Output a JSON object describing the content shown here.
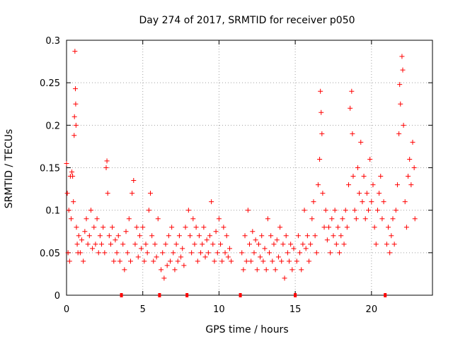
{
  "chart_data": {
    "type": "scatter",
    "title": "Day 274 of 2017, SRMTID for receiver p050",
    "xlabel": "GPS time / hours",
    "ylabel": "SRMTID / TECUs",
    "xlim": [
      0,
      24
    ],
    "ylim": [
      0,
      0.3
    ],
    "xticks": [
      0,
      5,
      10,
      15,
      20
    ],
    "xtick_labels": [
      "0",
      "5",
      "10",
      "15",
      "20"
    ],
    "yticks": [
      0,
      0.05,
      0.1,
      0.15,
      0.2,
      0.25,
      0.3
    ],
    "ytick_labels": [
      "0",
      "0.05",
      "0.1",
      "0.15",
      "0.2",
      "0.25",
      "0.3"
    ],
    "grid": true,
    "marker": "+",
    "series_color": "#ff0000",
    "gap_markers_x": [
      3.6,
      6.1,
      7.9,
      11.4,
      15.0,
      20.9
    ],
    "series": [
      {
        "name": "SRMTID",
        "points": [
          [
            0.0,
            0.155
          ],
          [
            0.05,
            0.12
          ],
          [
            0.1,
            0.05
          ],
          [
            0.15,
            0.1
          ],
          [
            0.2,
            0.04
          ],
          [
            0.25,
            0.14
          ],
          [
            0.3,
            0.09
          ],
          [
            0.35,
            0.145
          ],
          [
            0.4,
            0.14
          ],
          [
            0.45,
            0.11
          ],
          [
            0.5,
            0.188
          ],
          [
            0.52,
            0.21
          ],
          [
            0.55,
            0.287
          ],
          [
            0.58,
            0.243
          ],
          [
            0.6,
            0.225
          ],
          [
            0.62,
            0.2
          ],
          [
            0.65,
            0.08
          ],
          [
            0.7,
            0.06
          ],
          [
            0.75,
            0.05
          ],
          [
            0.8,
            0.07
          ],
          [
            0.9,
            0.05
          ],
          [
            1.0,
            0.065
          ],
          [
            1.1,
            0.04
          ],
          [
            1.2,
            0.075
          ],
          [
            1.3,
            0.09
          ],
          [
            1.4,
            0.06
          ],
          [
            1.5,
            0.07
          ],
          [
            1.6,
            0.1
          ],
          [
            1.7,
            0.055
          ],
          [
            1.8,
            0.08
          ],
          [
            1.9,
            0.06
          ],
          [
            2.0,
            0.09
          ],
          [
            2.1,
            0.05
          ],
          [
            2.2,
            0.07
          ],
          [
            2.3,
            0.06
          ],
          [
            2.4,
            0.08
          ],
          [
            2.5,
            0.05
          ],
          [
            2.6,
            0.15
          ],
          [
            2.65,
            0.158
          ],
          [
            2.7,
            0.12
          ],
          [
            2.8,
            0.07
          ],
          [
            2.9,
            0.06
          ],
          [
            3.0,
            0.08
          ],
          [
            3.1,
            0.04
          ],
          [
            3.2,
            0.065
          ],
          [
            3.3,
            0.05
          ],
          [
            3.4,
            0.07
          ],
          [
            3.5,
            0.04
          ],
          [
            3.7,
            0.06
          ],
          [
            3.8,
            0.03
          ],
          [
            3.9,
            0.075
          ],
          [
            4.0,
            0.05
          ],
          [
            4.1,
            0.09
          ],
          [
            4.2,
            0.04
          ],
          [
            4.3,
            0.12
          ],
          [
            4.4,
            0.135
          ],
          [
            4.5,
            0.06
          ],
          [
            4.6,
            0.08
          ],
          [
            4.7,
            0.045
          ],
          [
            4.8,
            0.07
          ],
          [
            4.9,
            0.055
          ],
          [
            5.0,
            0.08
          ],
          [
            5.1,
            0.04
          ],
          [
            5.2,
            0.06
          ],
          [
            5.3,
            0.05
          ],
          [
            5.4,
            0.1
          ],
          [
            5.5,
            0.12
          ],
          [
            5.6,
            0.07
          ],
          [
            5.7,
            0.04
          ],
          [
            5.8,
            0.06
          ],
          [
            5.9,
            0.045
          ],
          [
            6.0,
            0.09
          ],
          [
            6.2,
            0.03
          ],
          [
            6.3,
            0.05
          ],
          [
            6.4,
            0.02
          ],
          [
            6.5,
            0.06
          ],
          [
            6.6,
            0.035
          ],
          [
            6.7,
            0.07
          ],
          [
            6.8,
            0.04
          ],
          [
            6.9,
            0.08
          ],
          [
            7.0,
            0.05
          ],
          [
            7.1,
            0.03
          ],
          [
            7.2,
            0.06
          ],
          [
            7.3,
            0.04
          ],
          [
            7.4,
            0.07
          ],
          [
            7.5,
            0.045
          ],
          [
            7.6,
            0.055
          ],
          [
            7.7,
            0.035
          ],
          [
            7.8,
            0.08
          ],
          [
            8.0,
            0.1
          ],
          [
            8.1,
            0.07
          ],
          [
            8.2,
            0.05
          ],
          [
            8.3,
            0.09
          ],
          [
            8.4,
            0.06
          ],
          [
            8.5,
            0.08
          ],
          [
            8.6,
            0.04
          ],
          [
            8.7,
            0.07
          ],
          [
            8.8,
            0.05
          ],
          [
            8.9,
            0.06
          ],
          [
            9.0,
            0.08
          ],
          [
            9.1,
            0.045
          ],
          [
            9.2,
            0.065
          ],
          [
            9.3,
            0.05
          ],
          [
            9.4,
            0.07
          ],
          [
            9.5,
            0.11
          ],
          [
            9.6,
            0.06
          ],
          [
            9.7,
            0.04
          ],
          [
            9.8,
            0.075
          ],
          [
            9.9,
            0.05
          ],
          [
            10.0,
            0.09
          ],
          [
            10.1,
            0.06
          ],
          [
            10.2,
            0.04
          ],
          [
            10.3,
            0.08
          ],
          [
            10.4,
            0.05
          ],
          [
            10.5,
            0.07
          ],
          [
            10.6,
            0.045
          ],
          [
            10.7,
            0.055
          ],
          [
            10.8,
            0.04
          ],
          [
            11.5,
            0.05
          ],
          [
            11.6,
            0.03
          ],
          [
            11.7,
            0.07
          ],
          [
            11.8,
            0.04
          ],
          [
            11.9,
            0.1
          ],
          [
            12.0,
            0.06
          ],
          [
            12.1,
            0.04
          ],
          [
            12.2,
            0.075
          ],
          [
            12.3,
            0.05
          ],
          [
            12.4,
            0.065
          ],
          [
            12.5,
            0.03
          ],
          [
            12.6,
            0.06
          ],
          [
            12.7,
            0.045
          ],
          [
            12.8,
            0.07
          ],
          [
            12.9,
            0.04
          ],
          [
            13.0,
            0.055
          ],
          [
            13.1,
            0.03
          ],
          [
            13.2,
            0.09
          ],
          [
            13.3,
            0.05
          ],
          [
            13.4,
            0.07
          ],
          [
            13.5,
            0.04
          ],
          [
            13.6,
            0.06
          ],
          [
            13.7,
            0.03
          ],
          [
            13.8,
            0.065
          ],
          [
            13.9,
            0.045
          ],
          [
            14.0,
            0.08
          ],
          [
            14.1,
            0.04
          ],
          [
            14.2,
            0.06
          ],
          [
            14.3,
            0.02
          ],
          [
            14.4,
            0.07
          ],
          [
            14.5,
            0.05
          ],
          [
            14.6,
            0.04
          ],
          [
            14.7,
            0.06
          ],
          [
            14.8,
            0.03
          ],
          [
            14.9,
            0.055
          ],
          [
            15.1,
            0.04
          ],
          [
            15.2,
            0.07
          ],
          [
            15.3,
            0.05
          ],
          [
            15.4,
            0.03
          ],
          [
            15.5,
            0.06
          ],
          [
            15.6,
            0.1
          ],
          [
            15.7,
            0.055
          ],
          [
            15.8,
            0.07
          ],
          [
            15.9,
            0.04
          ],
          [
            16.0,
            0.06
          ],
          [
            16.1,
            0.09
          ],
          [
            16.2,
            0.11
          ],
          [
            16.3,
            0.07
          ],
          [
            16.4,
            0.05
          ],
          [
            16.5,
            0.13
          ],
          [
            16.6,
            0.16
          ],
          [
            16.65,
            0.24
          ],
          [
            16.7,
            0.215
          ],
          [
            16.75,
            0.19
          ],
          [
            16.8,
            0.12
          ],
          [
            16.9,
            0.08
          ],
          [
            17.0,
            0.1
          ],
          [
            17.1,
            0.065
          ],
          [
            17.2,
            0.08
          ],
          [
            17.3,
            0.05
          ],
          [
            17.4,
            0.09
          ],
          [
            17.5,
            0.07
          ],
          [
            17.6,
            0.1
          ],
          [
            17.7,
            0.06
          ],
          [
            17.8,
            0.08
          ],
          [
            17.9,
            0.05
          ],
          [
            18.0,
            0.07
          ],
          [
            18.1,
            0.09
          ],
          [
            18.2,
            0.06
          ],
          [
            18.3,
            0.1
          ],
          [
            18.4,
            0.08
          ],
          [
            18.5,
            0.13
          ],
          [
            18.6,
            0.22
          ],
          [
            18.7,
            0.24
          ],
          [
            18.75,
            0.19
          ],
          [
            18.8,
            0.14
          ],
          [
            18.9,
            0.1
          ],
          [
            19.0,
            0.09
          ],
          [
            19.1,
            0.15
          ],
          [
            19.2,
            0.12
          ],
          [
            19.3,
            0.18
          ],
          [
            19.4,
            0.11
          ],
          [
            19.5,
            0.14
          ],
          [
            19.6,
            0.09
          ],
          [
            19.7,
            0.12
          ],
          [
            19.8,
            0.1
          ],
          [
            19.9,
            0.16
          ],
          [
            20.0,
            0.11
          ],
          [
            20.1,
            0.13
          ],
          [
            20.2,
            0.08
          ],
          [
            20.3,
            0.06
          ],
          [
            20.4,
            0.1
          ],
          [
            20.5,
            0.12
          ],
          [
            20.6,
            0.14
          ],
          [
            20.7,
            0.09
          ],
          [
            20.8,
            0.11
          ],
          [
            21.0,
            0.06
          ],
          [
            21.1,
            0.08
          ],
          [
            21.2,
            0.05
          ],
          [
            21.3,
            0.07
          ],
          [
            21.4,
            0.09
          ],
          [
            21.5,
            0.06
          ],
          [
            21.6,
            0.1
          ],
          [
            21.7,
            0.13
          ],
          [
            21.8,
            0.19
          ],
          [
            21.85,
            0.248
          ],
          [
            21.9,
            0.225
          ],
          [
            22.0,
            0.281
          ],
          [
            22.05,
            0.265
          ],
          [
            22.1,
            0.2
          ],
          [
            22.2,
            0.11
          ],
          [
            22.3,
            0.08
          ],
          [
            22.4,
            0.14
          ],
          [
            22.5,
            0.16
          ],
          [
            22.6,
            0.13
          ],
          [
            22.7,
            0.18
          ],
          [
            22.8,
            0.15
          ],
          [
            22.85,
            0.09
          ]
        ]
      }
    ]
  }
}
